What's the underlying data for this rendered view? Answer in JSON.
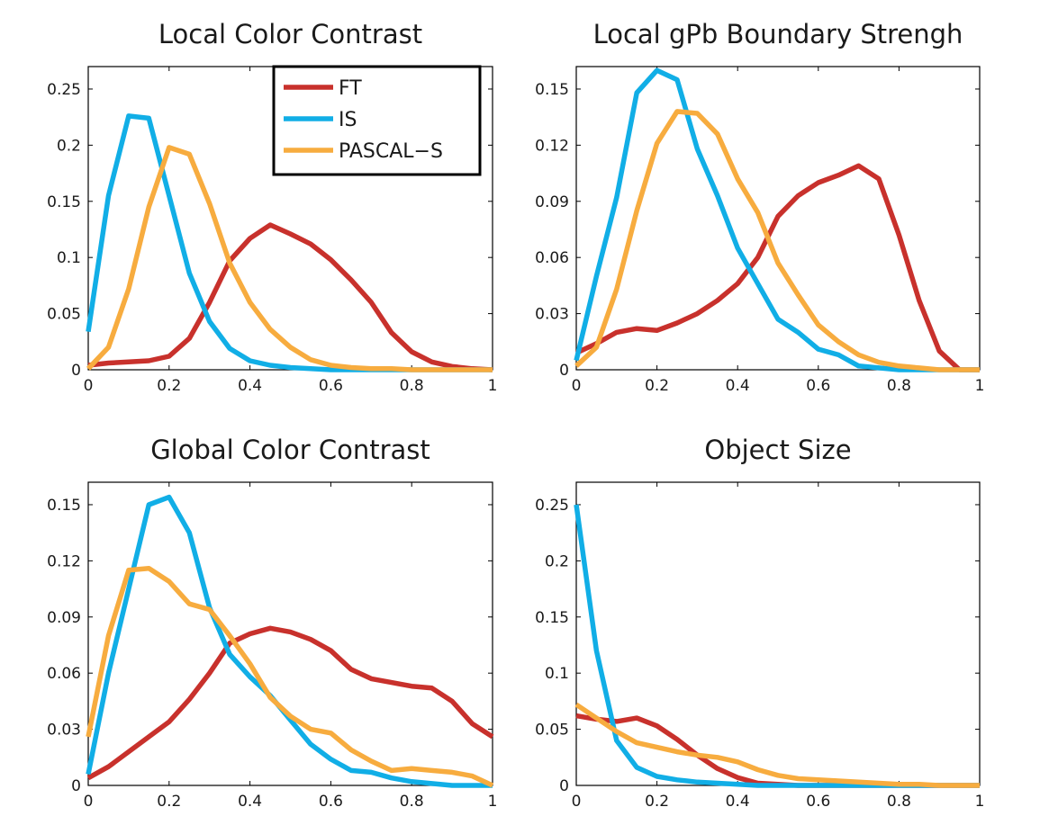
{
  "colors": {
    "FT": "#c8312c",
    "IS": "#11aee6",
    "PASCAL-S": "#f7ac3f"
  },
  "legend": {
    "entries": [
      {
        "label": "FT",
        "color": "#c8312c"
      },
      {
        "label": "IS",
        "color": "#11aee6"
      },
      {
        "label": "PASCAL−S",
        "color": "#f7ac3f"
      }
    ]
  },
  "chart_data": [
    {
      "type": "line",
      "title": "Local Color Contrast",
      "xlabel": "",
      "ylabel": "",
      "xlim": [
        0,
        1
      ],
      "ylim": [
        0,
        0.27
      ],
      "xticks": [
        0,
        0.2,
        0.4,
        0.6,
        0.8,
        1
      ],
      "xtick_labels": [
        "0",
        "0.2",
        "0.4",
        "0.6",
        "0.8",
        "1"
      ],
      "yticks": [
        0,
        0.05,
        0.1,
        0.15,
        0.2,
        0.25
      ],
      "ytick_labels": [
        "0",
        "0.05",
        "0.1",
        "0.15",
        "0.2",
        "0.25"
      ],
      "legend": "top-right",
      "grid": false,
      "x": [
        0,
        0.05,
        0.1,
        0.15,
        0.2,
        0.25,
        0.3,
        0.35,
        0.4,
        0.45,
        0.5,
        0.55,
        0.6,
        0.65,
        0.7,
        0.75,
        0.8,
        0.85,
        0.9,
        0.95,
        1.0
      ],
      "series": [
        {
          "name": "FT",
          "values": [
            0.004,
            0.006,
            0.007,
            0.008,
            0.012,
            0.028,
            0.06,
            0.097,
            0.117,
            0.129,
            0.121,
            0.112,
            0.098,
            0.08,
            0.06,
            0.033,
            0.016,
            0.007,
            0.003,
            0.001,
            0.0
          ]
        },
        {
          "name": "IS",
          "values": [
            0.034,
            0.155,
            0.226,
            0.224,
            0.155,
            0.086,
            0.043,
            0.019,
            0.008,
            0.004,
            0.002,
            0.001,
            0.0,
            0.0,
            0.0,
            0.0,
            0.0,
            0.0,
            0.0,
            0.0,
            0.0
          ]
        },
        {
          "name": "PASCAL−S",
          "values": [
            0.001,
            0.02,
            0.072,
            0.145,
            0.198,
            0.192,
            0.148,
            0.095,
            0.06,
            0.036,
            0.02,
            0.009,
            0.004,
            0.002,
            0.001,
            0.001,
            0.0,
            0.0,
            0.0,
            0.0,
            0.0
          ]
        }
      ]
    },
    {
      "type": "line",
      "title": "Local gPb Boundary Strengh",
      "xlabel": "",
      "ylabel": "",
      "xlim": [
        0,
        1
      ],
      "ylim": [
        0,
        0.162
      ],
      "xticks": [
        0,
        0.2,
        0.4,
        0.6,
        0.8,
        1
      ],
      "xtick_labels": [
        "0",
        "0.2",
        "0.4",
        "0.6",
        "0.8",
        "1"
      ],
      "yticks": [
        0,
        0.03,
        0.06,
        0.09,
        0.12,
        0.15
      ],
      "ytick_labels": [
        "0",
        "0.03",
        "0.06",
        "0.09",
        "0.12",
        "0.15"
      ],
      "grid": false,
      "x": [
        0,
        0.05,
        0.1,
        0.15,
        0.2,
        0.25,
        0.3,
        0.35,
        0.4,
        0.45,
        0.5,
        0.55,
        0.6,
        0.65,
        0.7,
        0.75,
        0.8,
        0.85,
        0.9,
        0.95,
        1.0
      ],
      "series": [
        {
          "name": "FT",
          "values": [
            0.009,
            0.014,
            0.02,
            0.022,
            0.021,
            0.025,
            0.03,
            0.037,
            0.046,
            0.06,
            0.082,
            0.093,
            0.1,
            0.104,
            0.109,
            0.102,
            0.072,
            0.037,
            0.01,
            0.0,
            0.0
          ]
        },
        {
          "name": "IS",
          "values": [
            0.005,
            0.05,
            0.092,
            0.148,
            0.16,
            0.155,
            0.118,
            0.093,
            0.065,
            0.046,
            0.027,
            0.02,
            0.011,
            0.008,
            0.002,
            0.001,
            0.0,
            0.0,
            0.0,
            0.0,
            0.0
          ]
        },
        {
          "name": "PASCAL−S",
          "values": [
            0.002,
            0.012,
            0.043,
            0.085,
            0.121,
            0.138,
            0.137,
            0.126,
            0.102,
            0.084,
            0.057,
            0.04,
            0.024,
            0.015,
            0.008,
            0.004,
            0.002,
            0.001,
            0.0,
            0.0,
            0.0
          ]
        }
      ]
    },
    {
      "type": "line",
      "title": "Global Color Contrast",
      "xlabel": "",
      "ylabel": "",
      "xlim": [
        0,
        1
      ],
      "ylim": [
        0,
        0.162
      ],
      "xticks": [
        0,
        0.2,
        0.4,
        0.6,
        0.8,
        1
      ],
      "xtick_labels": [
        "0",
        "0.2",
        "0.4",
        "0.6",
        "0.8",
        "1"
      ],
      "yticks": [
        0,
        0.03,
        0.06,
        0.09,
        0.12,
        0.15
      ],
      "ytick_labels": [
        "0",
        "0.03",
        "0.06",
        "0.09",
        "0.12",
        "0.15"
      ],
      "grid": false,
      "x": [
        0,
        0.05,
        0.1,
        0.15,
        0.2,
        0.25,
        0.3,
        0.35,
        0.4,
        0.45,
        0.5,
        0.55,
        0.6,
        0.65,
        0.7,
        0.75,
        0.8,
        0.85,
        0.9,
        0.95,
        1.0
      ],
      "series": [
        {
          "name": "FT",
          "values": [
            0.004,
            0.01,
            0.018,
            0.026,
            0.034,
            0.046,
            0.06,
            0.076,
            0.081,
            0.084,
            0.082,
            0.078,
            0.072,
            0.062,
            0.057,
            0.055,
            0.053,
            0.052,
            0.045,
            0.033,
            0.026
          ]
        },
        {
          "name": "IS",
          "values": [
            0.006,
            0.06,
            0.105,
            0.15,
            0.154,
            0.135,
            0.095,
            0.07,
            0.058,
            0.048,
            0.035,
            0.022,
            0.014,
            0.008,
            0.007,
            0.004,
            0.002,
            0.001,
            0.0,
            0.0,
            0.0
          ]
        },
        {
          "name": "PASCAL−S",
          "values": [
            0.026,
            0.08,
            0.115,
            0.116,
            0.109,
            0.097,
            0.094,
            0.08,
            0.065,
            0.047,
            0.037,
            0.03,
            0.028,
            0.019,
            0.013,
            0.008,
            0.009,
            0.008,
            0.007,
            0.005,
            0.0
          ]
        }
      ]
    },
    {
      "type": "line",
      "title": "Object Size",
      "xlabel": "",
      "ylabel": "",
      "xlim": [
        0,
        1
      ],
      "ylim": [
        0,
        0.27
      ],
      "xticks": [
        0,
        0.2,
        0.4,
        0.6,
        0.8,
        1
      ],
      "xtick_labels": [
        "0",
        "0.2",
        "0.4",
        "0.6",
        "0.8",
        "1"
      ],
      "yticks": [
        0,
        0.05,
        0.1,
        0.15,
        0.2,
        0.25
      ],
      "ytick_labels": [
        "0",
        "0.05",
        "0.1",
        "0.15",
        "0.2",
        "0.25"
      ],
      "grid": false,
      "x": [
        0,
        0.05,
        0.1,
        0.15,
        0.2,
        0.25,
        0.3,
        0.35,
        0.4,
        0.45,
        0.5,
        0.55,
        0.6,
        0.65,
        0.7,
        0.75,
        0.8,
        0.85,
        0.9,
        0.95,
        1.0
      ],
      "series": [
        {
          "name": "FT",
          "values": [
            0.062,
            0.059,
            0.057,
            0.06,
            0.053,
            0.041,
            0.027,
            0.015,
            0.007,
            0.002,
            0.001,
            0.0,
            0.0,
            0.0,
            0.0,
            0.0,
            0.0,
            0.0,
            0.0,
            0.0,
            0.0
          ]
        },
        {
          "name": "IS",
          "values": [
            0.25,
            0.12,
            0.04,
            0.016,
            0.008,
            0.005,
            0.003,
            0.002,
            0.001,
            0.0,
            0.0,
            0.0,
            0.0,
            0.0,
            0.0,
            0.0,
            0.0,
            0.0,
            0.0,
            0.0,
            0.0
          ]
        },
        {
          "name": "PASCAL−S",
          "values": [
            0.072,
            0.06,
            0.048,
            0.038,
            0.034,
            0.03,
            0.027,
            0.025,
            0.021,
            0.014,
            0.009,
            0.006,
            0.005,
            0.004,
            0.003,
            0.002,
            0.001,
            0.001,
            0.0,
            0.0,
            0.0
          ]
        }
      ]
    }
  ]
}
